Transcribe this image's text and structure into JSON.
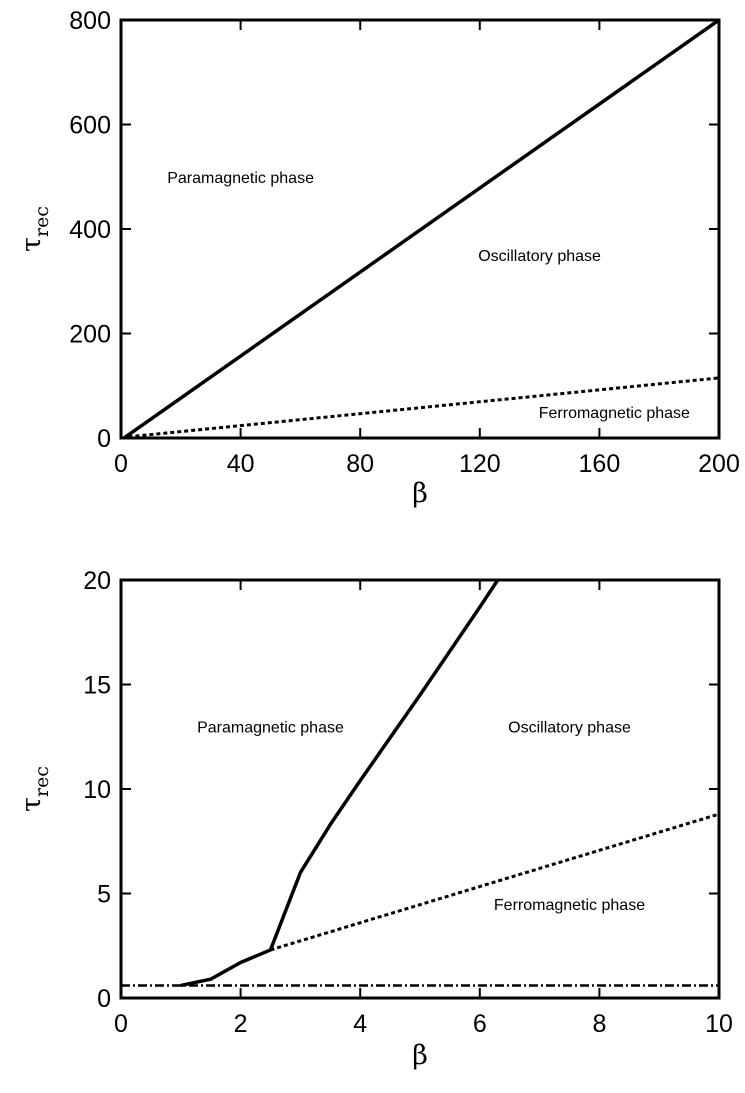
{
  "chart_data": [
    {
      "type": "line",
      "panel": "top",
      "xlabel": "β",
      "ylabel": {
        "main": "τ",
        "sub": "rec"
      },
      "xlim": [
        0,
        200
      ],
      "ylim": [
        0,
        800
      ],
      "xticks": [
        "0",
        "40",
        "80",
        "120",
        "160",
        "200"
      ],
      "yticks": [
        "0",
        "200",
        "400",
        "600",
        "800"
      ],
      "grid": false,
      "series": [
        {
          "style": "solid",
          "x": [
            1,
            200
          ],
          "y": [
            0,
            800
          ]
        },
        {
          "style": "dotted",
          "x": [
            2.5,
            200
          ],
          "y": [
            2.3,
            115
          ]
        },
        {
          "style": "dashdot",
          "x": [
            0,
            200
          ],
          "y": [
            0.6,
            0.6
          ]
        }
      ],
      "annotations": [
        {
          "text": "Paramagnetic phase",
          "x": 40,
          "y": 500
        },
        {
          "text": "Oscillatory phase",
          "x": 140,
          "y": 350
        },
        {
          "text": "Ferromagnetic phase",
          "x": 165,
          "y": 50
        }
      ]
    },
    {
      "type": "line",
      "panel": "bottom",
      "xlabel": "β",
      "ylabel": {
        "main": "τ",
        "sub": "rec"
      },
      "xlim": [
        0,
        10
      ],
      "ylim": [
        0,
        20
      ],
      "xticks": [
        "0",
        "2",
        "4",
        "6",
        "8",
        "10"
      ],
      "yticks": [
        "0",
        "5",
        "10",
        "15",
        "20"
      ],
      "grid": false,
      "series": [
        {
          "style": "solid",
          "x": [
            1,
            1.5,
            2,
            2.5,
            3,
            3.5,
            4,
            5,
            6,
            6.3
          ],
          "y": [
            0.6,
            0.9,
            1.7,
            2.3,
            6,
            8.3,
            10.4,
            14.5,
            18.7,
            20
          ]
        },
        {
          "style": "dotted",
          "x": [
            2.5,
            10
          ],
          "y": [
            2.3,
            8.8
          ]
        },
        {
          "style": "dashdot",
          "x": [
            0,
            10
          ],
          "y": [
            0.6,
            0.6
          ]
        }
      ],
      "annotations": [
        {
          "text": "Paramagnetic phase",
          "x": 2.5,
          "y": 13
        },
        {
          "text": "Oscillatory phase",
          "x": 7.5,
          "y": 13
        },
        {
          "text": "Ferromagnetic phase",
          "x": 7.5,
          "y": 4.5
        }
      ]
    }
  ]
}
